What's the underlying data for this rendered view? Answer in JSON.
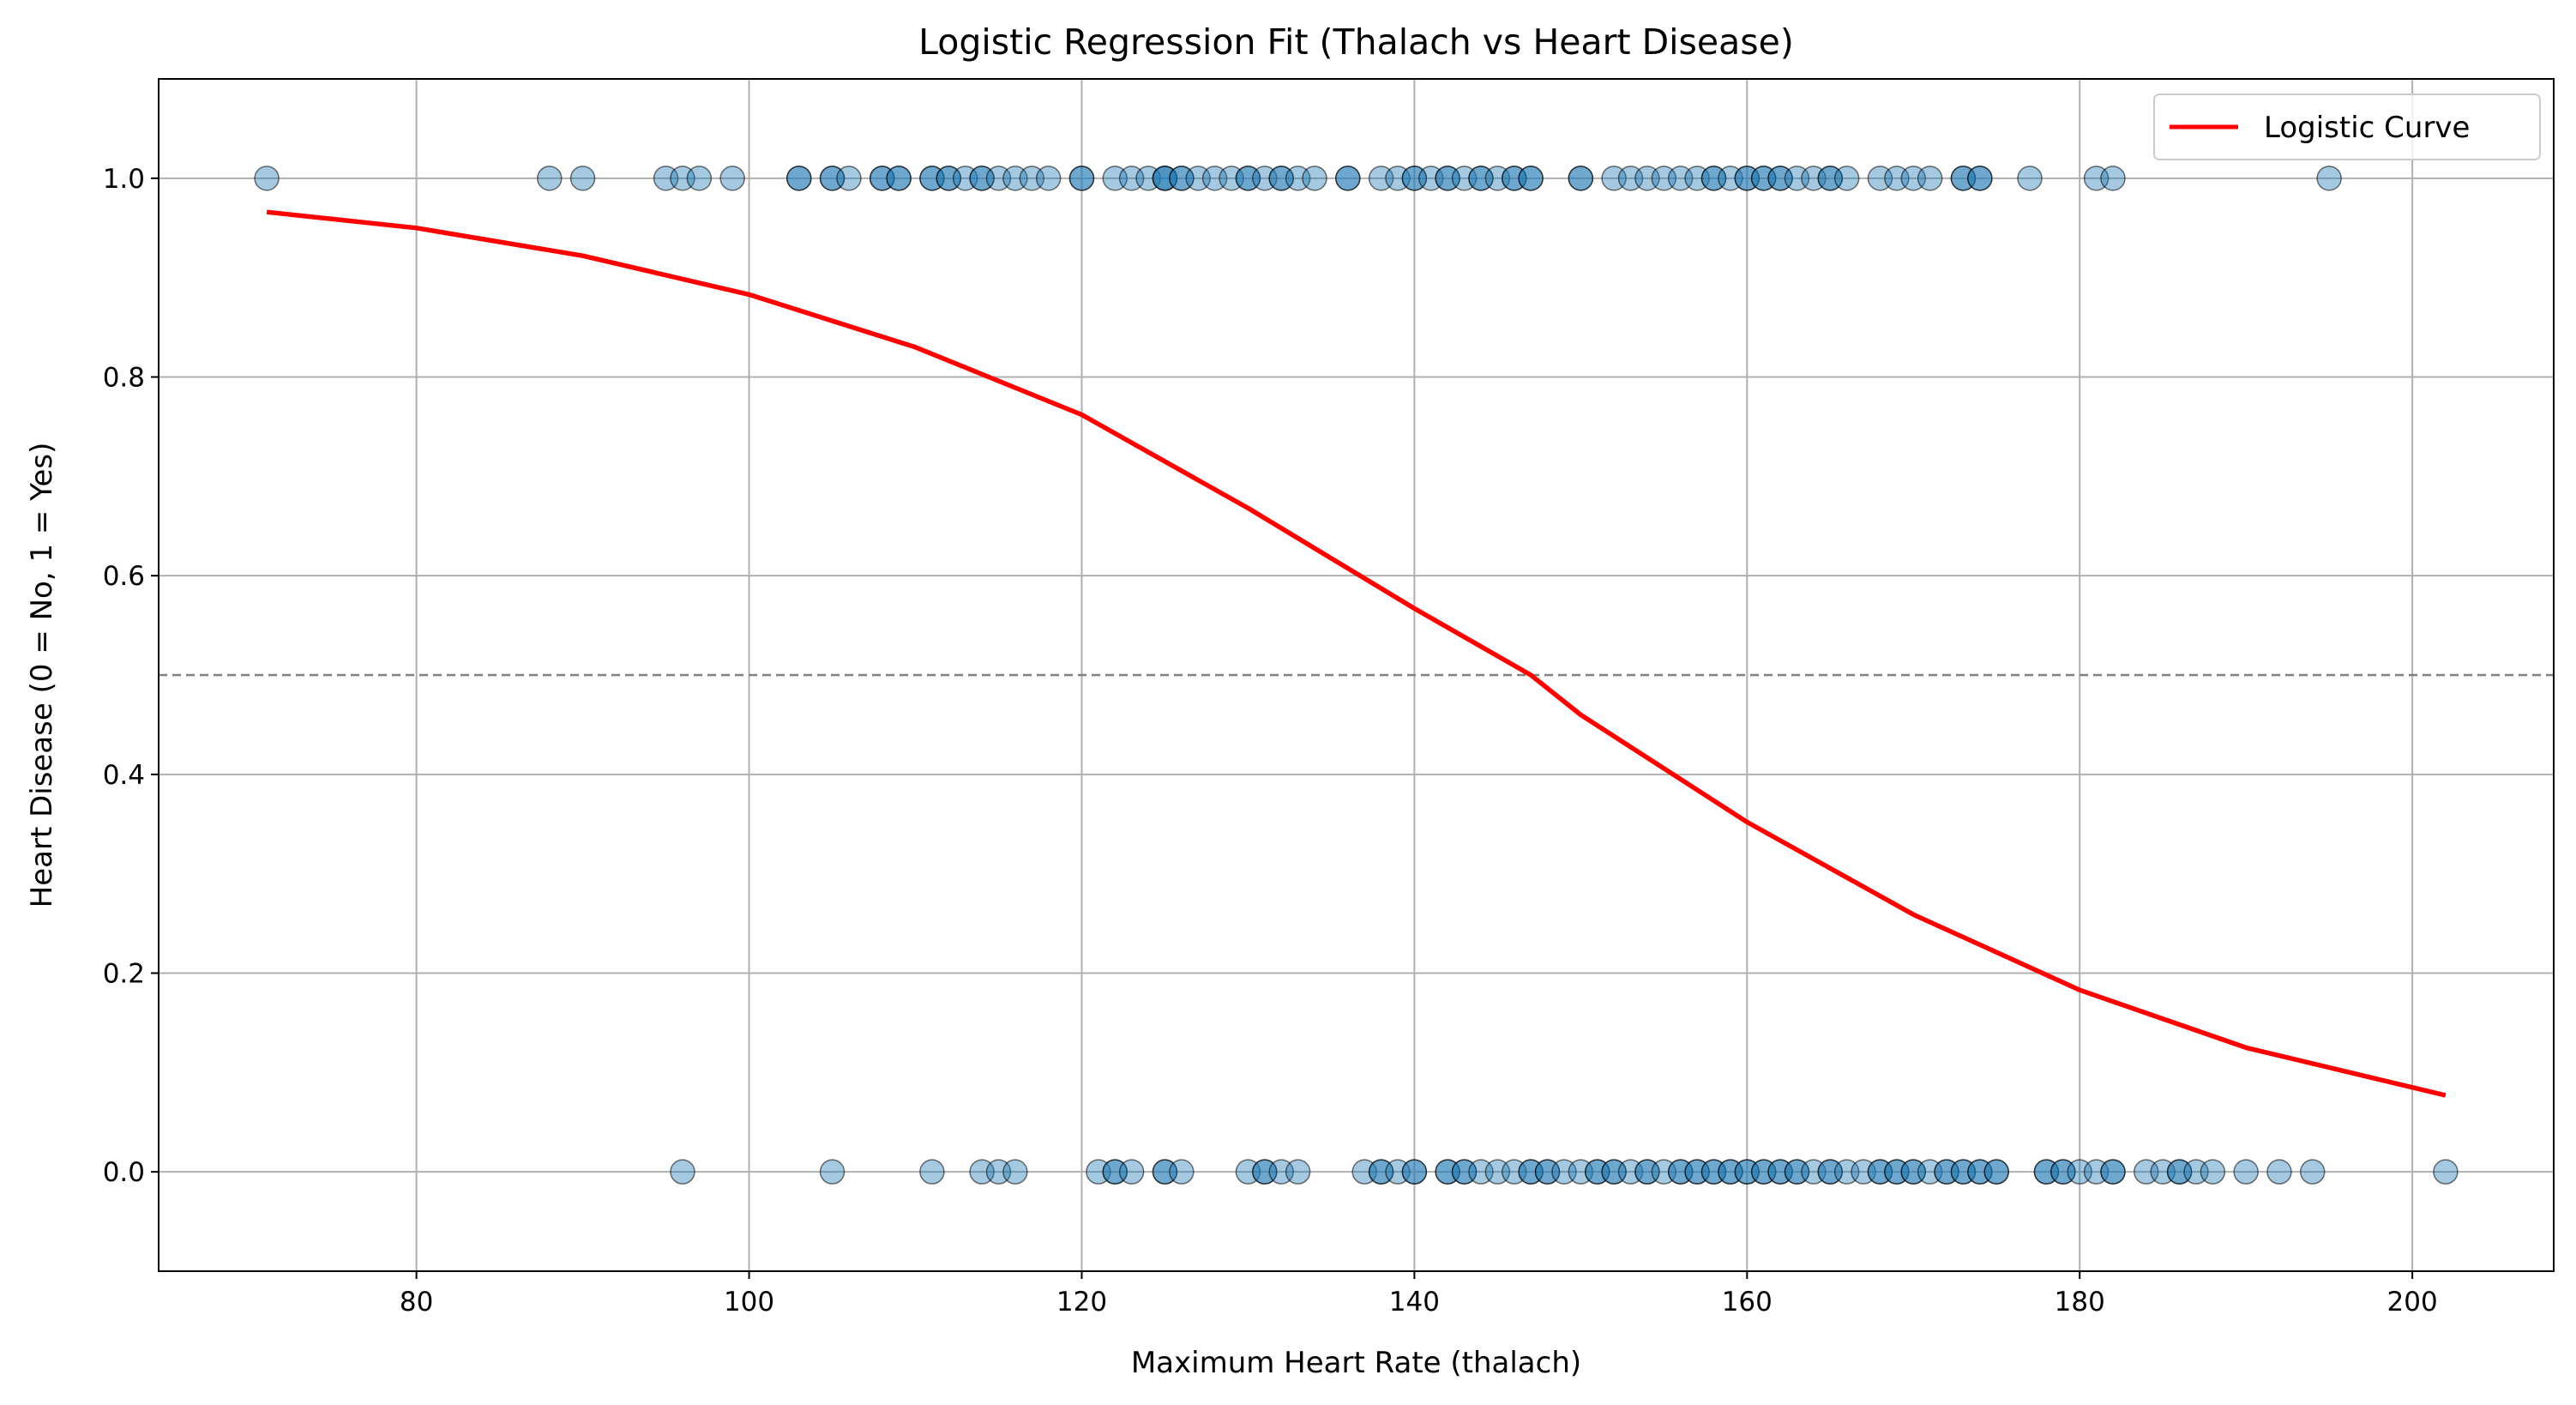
{
  "chart_data": {
    "type": "scatter",
    "title": "Logistic Regression Fit (Thalach vs Heart Disease)",
    "xlabel": "Maximum Heart Rate (thalach)",
    "ylabel": "Heart Disease (0 = No, 1 = Yes)",
    "xlim": [
      64.5,
      208.5
    ],
    "ylim": [
      -0.1,
      1.1
    ],
    "xticks": [
      80,
      100,
      120,
      140,
      160,
      180,
      200
    ],
    "xtick_labels": [
      "80",
      "100",
      "120",
      "140",
      "160",
      "180",
      "200"
    ],
    "yticks": [
      0.0,
      0.2,
      0.4,
      0.6,
      0.8,
      1.0
    ],
    "ytick_labels": [
      "0.0",
      "0.2",
      "0.4",
      "0.6",
      "0.8",
      "1.0"
    ],
    "grid": true,
    "legend_position": "top-right",
    "threshold": 0.5,
    "colors": {
      "points": "#1f77b4",
      "curve": "#ff0000",
      "threshold": "#808080",
      "grid": "#b0b0b0"
    },
    "points_y1": [
      71,
      88,
      90,
      95,
      96,
      97,
      99,
      103,
      103,
      105,
      105,
      106,
      108,
      108,
      109,
      109,
      111,
      111,
      112,
      112,
      113,
      114,
      114,
      115,
      116,
      117,
      118,
      120,
      120,
      122,
      123,
      124,
      125,
      125,
      125,
      126,
      126,
      127,
      128,
      129,
      130,
      130,
      131,
      132,
      132,
      133,
      134,
      136,
      136,
      138,
      139,
      140,
      140,
      141,
      142,
      142,
      143,
      144,
      144,
      145,
      146,
      146,
      147,
      147,
      150,
      150,
      152,
      153,
      154,
      155,
      156,
      157,
      158,
      158,
      159,
      160,
      160,
      161,
      161,
      162,
      162,
      163,
      164,
      165,
      165,
      166,
      168,
      169,
      170,
      171,
      173,
      173,
      174,
      174,
      177,
      181,
      182,
      195
    ],
    "points_y0": [
      96,
      105,
      111,
      114,
      115,
      116,
      121,
      122,
      122,
      123,
      125,
      125,
      126,
      130,
      131,
      131,
      132,
      133,
      137,
      138,
      138,
      139,
      140,
      140,
      142,
      142,
      143,
      143,
      144,
      145,
      146,
      147,
      147,
      148,
      148,
      149,
      150,
      151,
      151,
      152,
      152,
      153,
      154,
      154,
      155,
      156,
      156,
      157,
      157,
      158,
      158,
      159,
      159,
      160,
      160,
      161,
      161,
      162,
      162,
      163,
      163,
      164,
      165,
      165,
      166,
      167,
      168,
      168,
      169,
      169,
      170,
      170,
      171,
      172,
      172,
      173,
      173,
      174,
      174,
      175,
      175,
      178,
      178,
      179,
      179,
      180,
      181,
      182,
      182,
      184,
      185,
      186,
      186,
      187,
      188,
      190,
      192,
      194,
      202
    ],
    "curve": {
      "name": "Logistic Curve",
      "x": [
        71,
        80,
        90,
        100,
        110,
        120,
        130,
        140,
        147,
        150,
        160,
        170,
        180,
        190,
        202
      ],
      "y": [
        0.966,
        0.95,
        0.922,
        0.883,
        0.83,
        0.762,
        0.668,
        0.567,
        0.5,
        0.46,
        0.352,
        0.259,
        0.183,
        0.125,
        0.077
      ]
    }
  }
}
